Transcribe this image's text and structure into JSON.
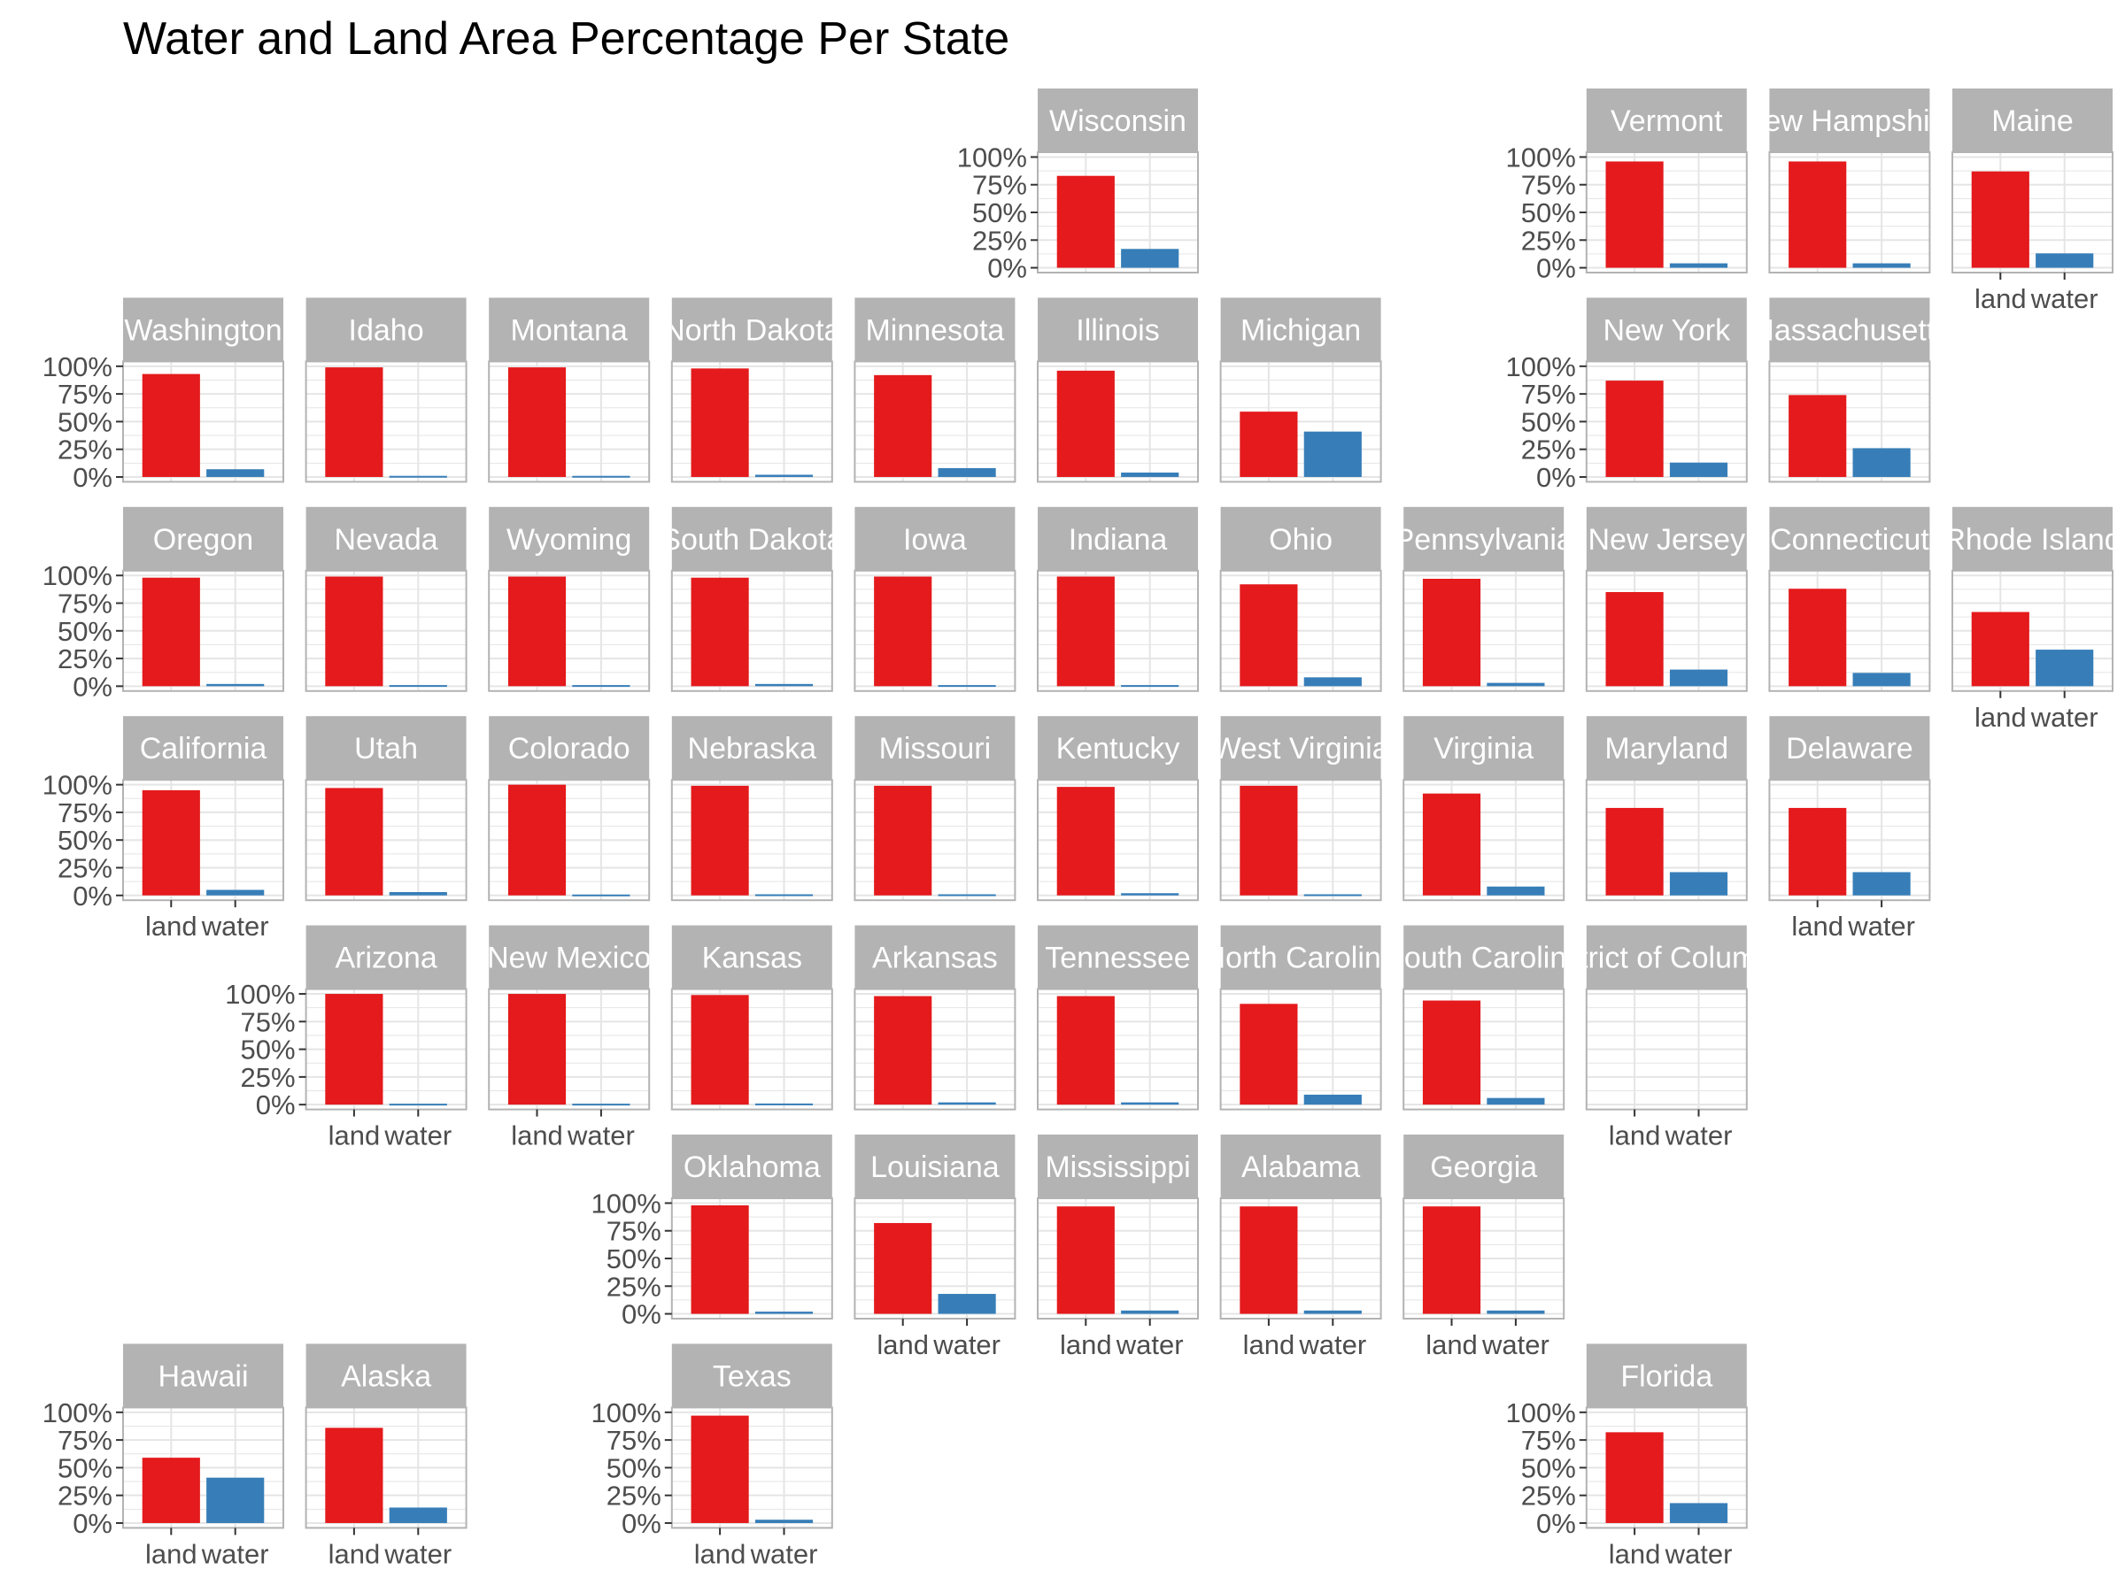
{
  "chart_data": {
    "type": "bar",
    "title": "Water and Land Area Percentage Per State",
    "xlabel": "",
    "ylabel": "",
    "categories": [
      "land",
      "water"
    ],
    "ylim": [
      0,
      1
    ],
    "y_ticks": [
      "0%",
      "25%",
      "50%",
      "75%",
      "100%"
    ],
    "grid": true,
    "legend": "none",
    "colors": {
      "land": "#e41a1c",
      "water": "#377eb8",
      "strip": "#b3b3b3",
      "panel_border": "#b3b3b3",
      "gridline": "#e5e5e5"
    },
    "facets": [
      {
        "name": "Wisconsin",
        "row": 0,
        "col": 5,
        "land": 0.83,
        "water": 0.17
      },
      {
        "name": "Vermont",
        "row": 0,
        "col": 8,
        "land": 0.96,
        "water": 0.04
      },
      {
        "name": "New Hampshire",
        "row": 0,
        "col": 9,
        "land": 0.96,
        "water": 0.04
      },
      {
        "name": "Maine",
        "row": 0,
        "col": 10,
        "land": 0.87,
        "water": 0.13
      },
      {
        "name": "Washington",
        "row": 1,
        "col": 0,
        "land": 0.93,
        "water": 0.07
      },
      {
        "name": "Idaho",
        "row": 1,
        "col": 1,
        "land": 0.99,
        "water": 0.01
      },
      {
        "name": "Montana",
        "row": 1,
        "col": 2,
        "land": 0.99,
        "water": 0.01
      },
      {
        "name": "North Dakota",
        "row": 1,
        "col": 3,
        "land": 0.98,
        "water": 0.02
      },
      {
        "name": "Minnesota",
        "row": 1,
        "col": 4,
        "land": 0.92,
        "water": 0.08
      },
      {
        "name": "Illinois",
        "row": 1,
        "col": 5,
        "land": 0.96,
        "water": 0.04
      },
      {
        "name": "Michigan",
        "row": 1,
        "col": 6,
        "land": 0.59,
        "water": 0.41
      },
      {
        "name": "New York",
        "row": 1,
        "col": 8,
        "land": 0.87,
        "water": 0.13
      },
      {
        "name": "Massachusetts",
        "row": 1,
        "col": 9,
        "land": 0.74,
        "water": 0.26
      },
      {
        "name": "Oregon",
        "row": 2,
        "col": 0,
        "land": 0.98,
        "water": 0.02
      },
      {
        "name": "Nevada",
        "row": 2,
        "col": 1,
        "land": 0.99,
        "water": 0.01
      },
      {
        "name": "Wyoming",
        "row": 2,
        "col": 2,
        "land": 0.99,
        "water": 0.01
      },
      {
        "name": "South Dakota",
        "row": 2,
        "col": 3,
        "land": 0.98,
        "water": 0.02
      },
      {
        "name": "Iowa",
        "row": 2,
        "col": 4,
        "land": 0.99,
        "water": 0.01
      },
      {
        "name": "Indiana",
        "row": 2,
        "col": 5,
        "land": 0.99,
        "water": 0.01
      },
      {
        "name": "Ohio",
        "row": 2,
        "col": 6,
        "land": 0.92,
        "water": 0.08
      },
      {
        "name": "Pennsylvania",
        "row": 2,
        "col": 7,
        "land": 0.97,
        "water": 0.03
      },
      {
        "name": "New Jersey",
        "row": 2,
        "col": 8,
        "land": 0.85,
        "water": 0.15
      },
      {
        "name": "Connecticut",
        "row": 2,
        "col": 9,
        "land": 0.88,
        "water": 0.12
      },
      {
        "name": "Rhode Island",
        "row": 2,
        "col": 10,
        "land": 0.67,
        "water": 0.33
      },
      {
        "name": "California",
        "row": 3,
        "col": 0,
        "land": 0.95,
        "water": 0.05
      },
      {
        "name": "Utah",
        "row": 3,
        "col": 1,
        "land": 0.97,
        "water": 0.03
      },
      {
        "name": "Colorado",
        "row": 3,
        "col": 2,
        "land": 1.0,
        "water": 0.0
      },
      {
        "name": "Nebraska",
        "row": 3,
        "col": 3,
        "land": 0.99,
        "water": 0.01
      },
      {
        "name": "Missouri",
        "row": 3,
        "col": 4,
        "land": 0.99,
        "water": 0.01
      },
      {
        "name": "Kentucky",
        "row": 3,
        "col": 5,
        "land": 0.98,
        "water": 0.02
      },
      {
        "name": "West Virginia",
        "row": 3,
        "col": 6,
        "land": 0.99,
        "water": 0.01
      },
      {
        "name": "Virginia",
        "row": 3,
        "col": 7,
        "land": 0.92,
        "water": 0.08
      },
      {
        "name": "Maryland",
        "row": 3,
        "col": 8,
        "land": 0.79,
        "water": 0.21
      },
      {
        "name": "Delaware",
        "row": 3,
        "col": 9,
        "land": 0.79,
        "water": 0.21
      },
      {
        "name": "Arizona",
        "row": 4,
        "col": 1,
        "land": 1.0,
        "water": 0.0
      },
      {
        "name": "New Mexico",
        "row": 4,
        "col": 2,
        "land": 1.0,
        "water": 0.0
      },
      {
        "name": "Kansas",
        "row": 4,
        "col": 3,
        "land": 0.99,
        "water": 0.01
      },
      {
        "name": "Arkansas",
        "row": 4,
        "col": 4,
        "land": 0.98,
        "water": 0.02
      },
      {
        "name": "Tennessee",
        "row": 4,
        "col": 5,
        "land": 0.98,
        "water": 0.02
      },
      {
        "name": "North Carolina",
        "row": 4,
        "col": 6,
        "land": 0.91,
        "water": 0.09
      },
      {
        "name": "South Carolina",
        "row": 4,
        "col": 7,
        "land": 0.94,
        "water": 0.06
      },
      {
        "name": "District of Columbia",
        "row": 4,
        "col": 8,
        "land": null,
        "water": null
      },
      {
        "name": "Oklahoma",
        "row": 5,
        "col": 3,
        "land": 0.98,
        "water": 0.02
      },
      {
        "name": "Louisiana",
        "row": 5,
        "col": 4,
        "land": 0.82,
        "water": 0.18
      },
      {
        "name": "Mississippi",
        "row": 5,
        "col": 5,
        "land": 0.97,
        "water": 0.03
      },
      {
        "name": "Alabama",
        "row": 5,
        "col": 6,
        "land": 0.97,
        "water": 0.03
      },
      {
        "name": "Georgia",
        "row": 5,
        "col": 7,
        "land": 0.97,
        "water": 0.03
      },
      {
        "name": "Hawaii",
        "row": 6,
        "col": 0,
        "land": 0.59,
        "water": 0.41
      },
      {
        "name": "Alaska",
        "row": 6,
        "col": 1,
        "land": 0.86,
        "water": 0.14
      },
      {
        "name": "Texas",
        "row": 6,
        "col": 3,
        "land": 0.97,
        "water": 0.03
      },
      {
        "name": "Florida",
        "row": 6,
        "col": 8,
        "land": 0.82,
        "water": 0.18
      }
    ]
  }
}
